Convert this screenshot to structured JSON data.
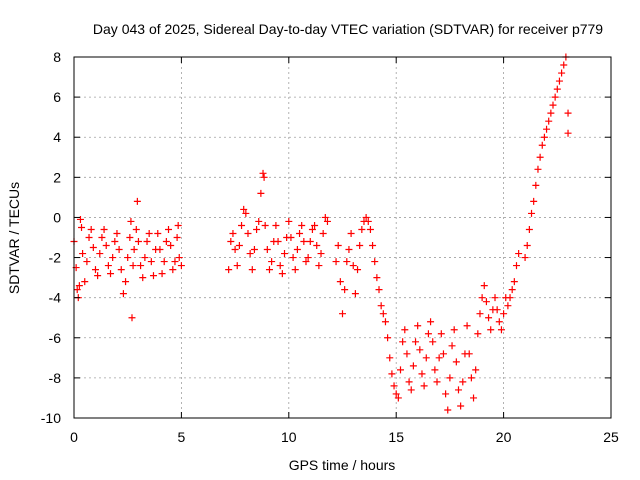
{
  "chart_data": {
    "type": "scatter",
    "title": "Day 043 of 2025, Sidereal Day-to-day VTEC variation (SDTVAR) for receiver p779",
    "xlabel": "GPS time / hours",
    "ylabel": "SDTVAR / TECUs",
    "xlim": [
      0,
      25
    ],
    "ylim": [
      -10,
      8
    ],
    "xticks": [
      "0",
      "5",
      "10",
      "15",
      "20",
      "25"
    ],
    "yticks": [
      "-10",
      "-8",
      "-6",
      "-4",
      "-2",
      "0",
      "2",
      "4",
      "6",
      "8"
    ],
    "grid": true,
    "legend": "none",
    "marker": "plus",
    "color": "#ff0000",
    "series": [
      {
        "points": [
          [
            0.0,
            -1.2
          ],
          [
            0.1,
            -2.5
          ],
          [
            0.15,
            -3.6
          ],
          [
            0.2,
            -4.0
          ],
          [
            0.25,
            -3.4
          ],
          [
            0.3,
            -0.1
          ],
          [
            0.35,
            -0.5
          ],
          [
            0.4,
            -1.8
          ],
          [
            0.5,
            -3.2
          ],
          [
            0.6,
            -2.2
          ],
          [
            0.7,
            -1.0
          ],
          [
            0.8,
            -0.6
          ],
          [
            0.9,
            -1.5
          ],
          [
            1.0,
            -2.6
          ],
          [
            1.1,
            -2.9
          ],
          [
            1.2,
            -1.8
          ],
          [
            1.3,
            -1.0
          ],
          [
            1.4,
            -0.6
          ],
          [
            1.5,
            -1.4
          ],
          [
            1.6,
            -2.4
          ],
          [
            1.7,
            -2.8
          ],
          [
            1.8,
            -2.0
          ],
          [
            1.9,
            -1.2
          ],
          [
            2.0,
            -0.8
          ],
          [
            2.1,
            -1.6
          ],
          [
            2.2,
            -2.6
          ],
          [
            2.3,
            -3.8
          ],
          [
            2.4,
            -3.2
          ],
          [
            2.5,
            -2.0
          ],
          [
            2.6,
            -1.0
          ],
          [
            2.65,
            -0.2
          ],
          [
            2.7,
            -5.0
          ],
          [
            2.75,
            -2.4
          ],
          [
            2.8,
            -1.6
          ],
          [
            2.9,
            -0.6
          ],
          [
            2.95,
            0.8
          ],
          [
            3.0,
            -1.2
          ],
          [
            3.1,
            -2.4
          ],
          [
            3.2,
            -3.0
          ],
          [
            3.3,
            -2.0
          ],
          [
            3.4,
            -1.2
          ],
          [
            3.5,
            -0.8
          ],
          [
            3.6,
            -2.2
          ],
          [
            3.7,
            -2.9
          ],
          [
            3.8,
            -1.6
          ],
          [
            3.9,
            -0.8
          ],
          [
            4.0,
            -1.6
          ],
          [
            4.1,
            -2.8
          ],
          [
            4.2,
            -2.2
          ],
          [
            4.3,
            -1.2
          ],
          [
            4.4,
            -0.6
          ],
          [
            4.5,
            -1.4
          ],
          [
            4.6,
            -2.6
          ],
          [
            4.7,
            -2.2
          ],
          [
            4.8,
            -1.0
          ],
          [
            4.85,
            -0.4
          ],
          [
            4.9,
            -2.0
          ],
          [
            5.0,
            -2.4
          ],
          [
            7.2,
            -2.6
          ],
          [
            7.3,
            -1.2
          ],
          [
            7.4,
            -0.8
          ],
          [
            7.5,
            -1.6
          ],
          [
            7.6,
            -2.4
          ],
          [
            7.7,
            -1.4
          ],
          [
            7.8,
            -0.4
          ],
          [
            7.9,
            0.4
          ],
          [
            8.0,
            0.2
          ],
          [
            8.1,
            -0.8
          ],
          [
            8.2,
            -1.8
          ],
          [
            8.3,
            -2.6
          ],
          [
            8.4,
            -1.6
          ],
          [
            8.5,
            -0.6
          ],
          [
            8.6,
            -0.2
          ],
          [
            8.7,
            1.2
          ],
          [
            8.8,
            2.2
          ],
          [
            8.85,
            2.0
          ],
          [
            8.9,
            -0.4
          ],
          [
            9.0,
            -1.6
          ],
          [
            9.1,
            -2.6
          ],
          [
            9.2,
            -2.2
          ],
          [
            9.3,
            -1.2
          ],
          [
            9.4,
            -0.4
          ],
          [
            9.5,
            -1.2
          ],
          [
            9.6,
            -2.4
          ],
          [
            9.7,
            -2.8
          ],
          [
            9.8,
            -1.8
          ],
          [
            9.9,
            -1.0
          ],
          [
            10.0,
            -0.2
          ],
          [
            10.1,
            -1.0
          ],
          [
            10.2,
            -2.0
          ],
          [
            10.3,
            -2.6
          ],
          [
            10.4,
            -1.6
          ],
          [
            10.5,
            -0.8
          ],
          [
            10.6,
            -0.4
          ],
          [
            10.7,
            -1.2
          ],
          [
            10.8,
            -2.2
          ],
          [
            10.9,
            -2.0
          ],
          [
            11.0,
            -1.2
          ],
          [
            11.1,
            -0.6
          ],
          [
            11.2,
            -0.4
          ],
          [
            11.3,
            -1.4
          ],
          [
            11.4,
            -2.4
          ],
          [
            11.5,
            -1.8
          ],
          [
            11.6,
            -0.8
          ],
          [
            11.7,
            0.0
          ],
          [
            11.8,
            -0.2
          ],
          [
            12.2,
            -2.2
          ],
          [
            12.3,
            -1.4
          ],
          [
            12.4,
            -3.2
          ],
          [
            12.5,
            -4.8
          ],
          [
            12.6,
            -3.6
          ],
          [
            12.7,
            -2.2
          ],
          [
            12.8,
            -1.6
          ],
          [
            12.9,
            -0.8
          ],
          [
            13.0,
            -2.4
          ],
          [
            13.1,
            -3.8
          ],
          [
            13.2,
            -2.6
          ],
          [
            13.3,
            -1.4
          ],
          [
            13.4,
            -0.6
          ],
          [
            13.5,
            -0.2
          ],
          [
            13.6,
            0.0
          ],
          [
            13.7,
            -0.2
          ],
          [
            13.8,
            -0.6
          ],
          [
            13.9,
            -1.4
          ],
          [
            14.0,
            -2.2
          ],
          [
            14.1,
            -3.0
          ],
          [
            14.2,
            -3.6
          ],
          [
            14.3,
            -4.4
          ],
          [
            14.4,
            -4.8
          ],
          [
            14.5,
            -5.2
          ],
          [
            14.6,
            -6.0
          ],
          [
            14.7,
            -7.0
          ],
          [
            14.8,
            -7.8
          ],
          [
            14.9,
            -8.4
          ],
          [
            15.0,
            -8.8
          ],
          [
            15.1,
            -9.0
          ],
          [
            15.2,
            -7.6
          ],
          [
            15.3,
            -6.2
          ],
          [
            15.4,
            -5.6
          ],
          [
            15.5,
            -6.8
          ],
          [
            15.6,
            -8.2
          ],
          [
            15.7,
            -8.6
          ],
          [
            15.8,
            -7.4
          ],
          [
            15.9,
            -6.2
          ],
          [
            16.0,
            -5.4
          ],
          [
            16.1,
            -6.6
          ],
          [
            16.2,
            -7.8
          ],
          [
            16.3,
            -8.4
          ],
          [
            16.4,
            -7.0
          ],
          [
            16.5,
            -5.8
          ],
          [
            16.6,
            -5.2
          ],
          [
            16.7,
            -6.2
          ],
          [
            16.8,
            -7.6
          ],
          [
            16.9,
            -8.2
          ],
          [
            17.0,
            -7.0
          ],
          [
            17.1,
            -5.8
          ],
          [
            17.2,
            -6.8
          ],
          [
            17.3,
            -8.8
          ],
          [
            17.4,
            -9.6
          ],
          [
            17.5,
            -8.0
          ],
          [
            17.6,
            -6.4
          ],
          [
            17.7,
            -5.6
          ],
          [
            17.8,
            -7.2
          ],
          [
            17.9,
            -8.6
          ],
          [
            18.0,
            -9.4
          ],
          [
            18.1,
            -8.2
          ],
          [
            18.2,
            -6.8
          ],
          [
            18.3,
            -5.4
          ],
          [
            18.4,
            -6.8
          ],
          [
            18.5,
            -8.0
          ],
          [
            18.6,
            -9.0
          ],
          [
            18.7,
            -7.6
          ],
          [
            18.8,
            -5.8
          ],
          [
            18.9,
            -4.8
          ],
          [
            19.0,
            -4.0
          ],
          [
            19.1,
            -3.4
          ],
          [
            19.2,
            -4.2
          ],
          [
            19.3,
            -5.0
          ],
          [
            19.4,
            -5.6
          ],
          [
            19.5,
            -4.6
          ],
          [
            19.6,
            -4.0
          ],
          [
            19.7,
            -4.6
          ],
          [
            19.8,
            -5.2
          ],
          [
            19.9,
            -5.6
          ],
          [
            20.0,
            -4.8
          ],
          [
            20.1,
            -4.0
          ],
          [
            20.2,
            -4.4
          ],
          [
            20.3,
            -4.0
          ],
          [
            20.4,
            -3.6
          ],
          [
            20.5,
            -3.2
          ],
          [
            20.6,
            -2.4
          ],
          [
            20.7,
            -1.8
          ],
          [
            21.0,
            -2.0
          ],
          [
            21.1,
            -1.4
          ],
          [
            21.2,
            -0.6
          ],
          [
            21.3,
            0.2
          ],
          [
            21.4,
            0.8
          ],
          [
            21.5,
            1.6
          ],
          [
            21.6,
            2.4
          ],
          [
            21.7,
            3.0
          ],
          [
            21.8,
            3.6
          ],
          [
            21.9,
            4.0
          ],
          [
            22.0,
            4.4
          ],
          [
            22.1,
            4.8
          ],
          [
            22.2,
            5.2
          ],
          [
            22.3,
            5.6
          ],
          [
            22.4,
            6.0
          ],
          [
            22.5,
            6.4
          ],
          [
            22.6,
            6.8
          ],
          [
            22.7,
            7.2
          ],
          [
            22.8,
            7.6
          ],
          [
            22.9,
            8.0
          ],
          [
            23.0,
            5.2
          ],
          [
            23.0,
            4.2
          ]
        ]
      }
    ]
  }
}
